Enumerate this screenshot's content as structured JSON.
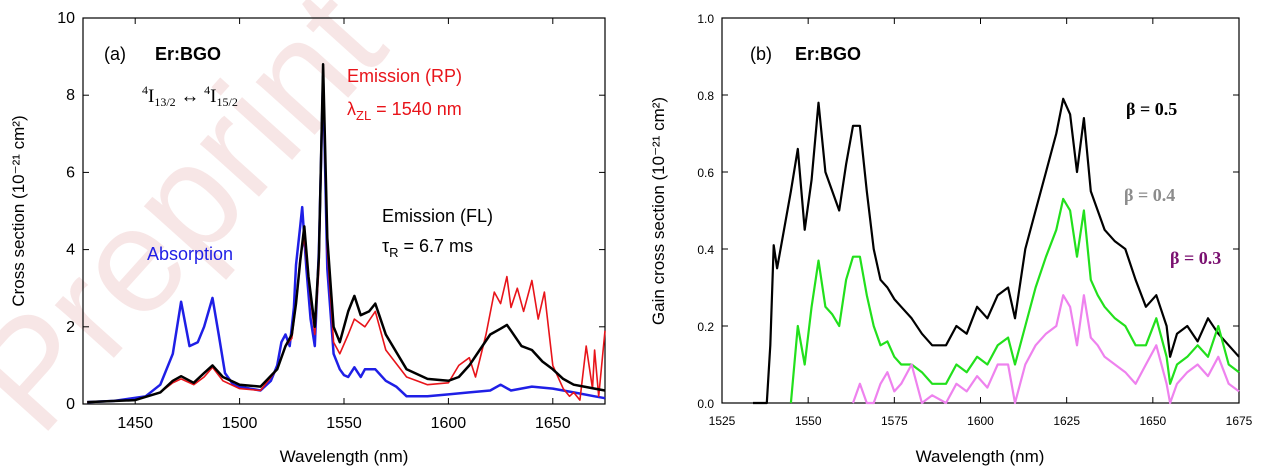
{
  "watermark": "Preprint",
  "colors": {
    "black": "#000000",
    "red": "#e8141a",
    "blue": "#1f1fe6",
    "green": "#22e01c",
    "violet": "#ee82ee",
    "gray": "#8c8c8c",
    "purple": "#7a1070"
  },
  "chart_data": [
    {
      "type": "line",
      "panel_label": "(a)",
      "title": "Er:BGO",
      "xlabel": "Wavelength (nm)",
      "ylabel": "Cross section (10⁻²¹ cm²)",
      "xlim": [
        1425,
        1675
      ],
      "ylim": [
        0,
        10
      ],
      "xticks": [
        "1450",
        "1500",
        "1550",
        "1600",
        "1650"
      ],
      "yticks": [
        "0",
        "2",
        "4",
        "6",
        "8",
        "10"
      ],
      "grid": false,
      "annotations": {
        "transition": {
          "sup1": "4",
          "main1": "I",
          "sub1": "13/2",
          "arrow": " ↔ ",
          "sup2": "4",
          "main2": "I",
          "sub2": "15/2"
        },
        "emission_rp": "Emission (RP)",
        "lambda_zl": {
          "symbol": "λ",
          "sub": "ZL",
          "text": " = 1540 nm"
        },
        "emission_fl": "Emission (FL)",
        "tau_r": {
          "symbol": "τ",
          "sub": "R",
          "text": " = 6.7 ms"
        },
        "absorption": "Absorption"
      },
      "series": [
        {
          "name": "Absorption",
          "color": "#1f1fe6",
          "width": 2.5,
          "x": [
            1427,
            1440,
            1455,
            1462,
            1468,
            1472,
            1476,
            1480,
            1483,
            1487,
            1490,
            1493,
            1497,
            1500,
            1505,
            1510,
            1515,
            1518,
            1520,
            1522,
            1524,
            1526,
            1527,
            1529,
            1530,
            1532,
            1534,
            1536,
            1538,
            1540,
            1542,
            1545,
            1548,
            1550,
            1552,
            1555,
            1558,
            1560,
            1565,
            1570,
            1575,
            1580,
            1590,
            1600,
            1610,
            1620,
            1625,
            1630,
            1640,
            1650,
            1660,
            1670,
            1675
          ],
          "y": [
            0.05,
            0.08,
            0.2,
            0.5,
            1.3,
            2.65,
            1.5,
            1.6,
            2.0,
            2.75,
            1.8,
            0.8,
            0.5,
            0.45,
            0.4,
            0.35,
            0.6,
            1.0,
            1.6,
            1.8,
            1.5,
            2.5,
            3.6,
            4.6,
            5.1,
            3.5,
            2.2,
            1.5,
            4.0,
            8.5,
            3.5,
            1.3,
            0.9,
            0.75,
            0.7,
            0.95,
            0.7,
            0.9,
            0.9,
            0.6,
            0.45,
            0.2,
            0.2,
            0.25,
            0.3,
            0.35,
            0.5,
            0.35,
            0.45,
            0.4,
            0.3,
            0.2,
            0.15
          ]
        },
        {
          "name": "Emission (RP)",
          "color": "#e8141a",
          "width": 1.6,
          "x": [
            1427,
            1450,
            1462,
            1468,
            1472,
            1478,
            1483,
            1487,
            1492,
            1500,
            1510,
            1518,
            1522,
            1525,
            1527,
            1529,
            1531,
            1533,
            1536,
            1538,
            1540,
            1542,
            1545,
            1548,
            1552,
            1555,
            1560,
            1565,
            1570,
            1580,
            1590,
            1600,
            1605,
            1610,
            1613,
            1618,
            1622,
            1625,
            1628,
            1630,
            1633,
            1636,
            1640,
            1643,
            1646,
            1650,
            1655,
            1658,
            1660,
            1663,
            1666,
            1669,
            1670,
            1672,
            1675
          ],
          "y": [
            0.05,
            0.1,
            0.3,
            0.55,
            0.65,
            0.5,
            0.7,
            0.95,
            0.6,
            0.4,
            0.35,
            0.9,
            1.5,
            1.7,
            2.6,
            3.8,
            4.3,
            3.2,
            1.8,
            3.5,
            8.5,
            4.0,
            1.6,
            1.3,
            1.8,
            2.2,
            2.0,
            2.4,
            1.4,
            0.7,
            0.5,
            0.55,
            1.0,
            1.2,
            0.7,
            1.8,
            2.9,
            2.6,
            3.3,
            2.5,
            3.0,
            2.4,
            3.2,
            2.2,
            2.9,
            1.0,
            0.4,
            0.2,
            0.3,
            0.1,
            1.5,
            0.4,
            1.4,
            0.2,
            1.9
          ]
        },
        {
          "name": "Emission (FL)",
          "color": "#000000",
          "width": 2.5,
          "x": [
            1427,
            1450,
            1462,
            1468,
            1472,
            1478,
            1483,
            1487,
            1492,
            1500,
            1510,
            1518,
            1522,
            1525,
            1527,
            1529,
            1531,
            1533,
            1536,
            1538,
            1540,
            1542,
            1545,
            1548,
            1552,
            1555,
            1558,
            1562,
            1565,
            1570,
            1580,
            1590,
            1600,
            1605,
            1610,
            1615,
            1620,
            1625,
            1628,
            1630,
            1635,
            1640,
            1645,
            1650,
            1655,
            1660,
            1665,
            1670,
            1675
          ],
          "y": [
            0.05,
            0.1,
            0.3,
            0.6,
            0.72,
            0.55,
            0.8,
            1.0,
            0.7,
            0.5,
            0.45,
            0.9,
            1.5,
            1.8,
            2.6,
            3.7,
            4.6,
            3.3,
            2.0,
            3.8,
            8.8,
            4.3,
            2.0,
            1.6,
            2.4,
            2.8,
            2.3,
            2.4,
            2.6,
            1.8,
            0.9,
            0.65,
            0.6,
            0.7,
            1.0,
            1.4,
            1.8,
            1.95,
            2.05,
            1.9,
            1.5,
            1.4,
            1.1,
            0.9,
            0.65,
            0.5,
            0.45,
            0.4,
            0.35
          ]
        }
      ]
    },
    {
      "type": "line",
      "panel_label": "(b)",
      "title": "Er:BGO",
      "xlabel": "Wavelength (nm)",
      "ylabel": "Gain cross section (10⁻²¹ cm²)",
      "xlim": [
        1525,
        1675
      ],
      "ylim": [
        0,
        1.0
      ],
      "xticks": [
        "1525",
        "1550",
        "1575",
        "1600",
        "1625",
        "1650",
        "1675"
      ],
      "yticks": [
        "0.0",
        "0.2",
        "0.4",
        "0.6",
        "0.8",
        "1.0"
      ],
      "grid": false,
      "series": [
        {
          "name": "β = 0.5",
          "color": "#000000",
          "width": 2.2,
          "x": [
            1534,
            1538,
            1539,
            1540,
            1541,
            1543,
            1545,
            1547,
            1549,
            1551,
            1553,
            1555,
            1557,
            1559,
            1561,
            1563,
            1565,
            1567,
            1569,
            1571,
            1573,
            1575,
            1577,
            1580,
            1583,
            1586,
            1590,
            1593,
            1596,
            1599,
            1602,
            1605,
            1608,
            1610,
            1613,
            1616,
            1619,
            1622,
            1624,
            1626,
            1628,
            1630,
            1632,
            1634,
            1636,
            1639,
            1642,
            1645,
            1648,
            1651,
            1654,
            1655,
            1657,
            1660,
            1663,
            1666,
            1669,
            1672,
            1675
          ],
          "y": [
            0.0,
            0.0,
            0.15,
            0.41,
            0.35,
            0.45,
            0.55,
            0.66,
            0.45,
            0.58,
            0.78,
            0.6,
            0.55,
            0.5,
            0.62,
            0.72,
            0.72,
            0.55,
            0.4,
            0.32,
            0.3,
            0.27,
            0.25,
            0.22,
            0.18,
            0.15,
            0.15,
            0.2,
            0.18,
            0.25,
            0.22,
            0.28,
            0.3,
            0.22,
            0.4,
            0.5,
            0.6,
            0.7,
            0.79,
            0.75,
            0.6,
            0.74,
            0.55,
            0.5,
            0.45,
            0.42,
            0.4,
            0.32,
            0.25,
            0.28,
            0.2,
            0.12,
            0.18,
            0.2,
            0.16,
            0.22,
            0.18,
            0.15,
            0.12
          ]
        },
        {
          "name": "β = 0.4",
          "color": "#22e01c",
          "width": 2.2,
          "x": [
            1545,
            1547,
            1549,
            1551,
            1553,
            1555,
            1557,
            1559,
            1561,
            1563,
            1565,
            1567,
            1569,
            1571,
            1573,
            1575,
            1577,
            1580,
            1583,
            1586,
            1590,
            1593,
            1596,
            1599,
            1602,
            1605,
            1608,
            1610,
            1613,
            1616,
            1619,
            1622,
            1624,
            1626,
            1628,
            1630,
            1632,
            1634,
            1636,
            1639,
            1642,
            1645,
            1648,
            1651,
            1654,
            1655,
            1657,
            1660,
            1663,
            1666,
            1669,
            1672,
            1675
          ],
          "y": [
            0.0,
            0.2,
            0.1,
            0.25,
            0.37,
            0.25,
            0.23,
            0.2,
            0.32,
            0.38,
            0.38,
            0.28,
            0.2,
            0.15,
            0.16,
            0.12,
            0.1,
            0.1,
            0.08,
            0.05,
            0.05,
            0.1,
            0.08,
            0.12,
            0.1,
            0.15,
            0.17,
            0.1,
            0.2,
            0.3,
            0.38,
            0.45,
            0.53,
            0.5,
            0.38,
            0.5,
            0.32,
            0.28,
            0.25,
            0.22,
            0.2,
            0.15,
            0.15,
            0.22,
            0.12,
            0.05,
            0.1,
            0.12,
            0.15,
            0.12,
            0.2,
            0.1,
            0.08
          ]
        },
        {
          "name": "β = 0.3",
          "color": "#ee82ee",
          "width": 2.2,
          "x": [
            1563,
            1565,
            1567,
            1569,
            1571,
            1573,
            1575,
            1577,
            1580,
            1583,
            1586,
            1590,
            1593,
            1596,
            1599,
            1602,
            1605,
            1608,
            1610,
            1613,
            1616,
            1619,
            1622,
            1624,
            1626,
            1628,
            1630,
            1632,
            1634,
            1636,
            1639,
            1642,
            1645,
            1648,
            1651,
            1654,
            1655,
            1657,
            1660,
            1663,
            1666,
            1669,
            1672,
            1675
          ],
          "y": [
            0.0,
            0.05,
            0.0,
            0.0,
            0.05,
            0.08,
            0.03,
            0.05,
            0.1,
            0.0,
            0.02,
            0.0,
            0.05,
            0.03,
            0.07,
            0.04,
            0.1,
            0.1,
            0.0,
            0.1,
            0.15,
            0.18,
            0.2,
            0.28,
            0.25,
            0.15,
            0.28,
            0.17,
            0.15,
            0.12,
            0.1,
            0.08,
            0.05,
            0.1,
            0.15,
            0.05,
            0.0,
            0.05,
            0.08,
            0.1,
            0.07,
            0.12,
            0.05,
            0.03
          ]
        }
      ],
      "labels": {
        "beta05": {
          "text": "β = 0.5",
          "color": "#000000"
        },
        "beta04": {
          "text": "β = 0.4",
          "color": "#8c8c8c"
        },
        "beta03": {
          "text": "β = 0.3",
          "color": "#7a1070"
        }
      }
    }
  ]
}
